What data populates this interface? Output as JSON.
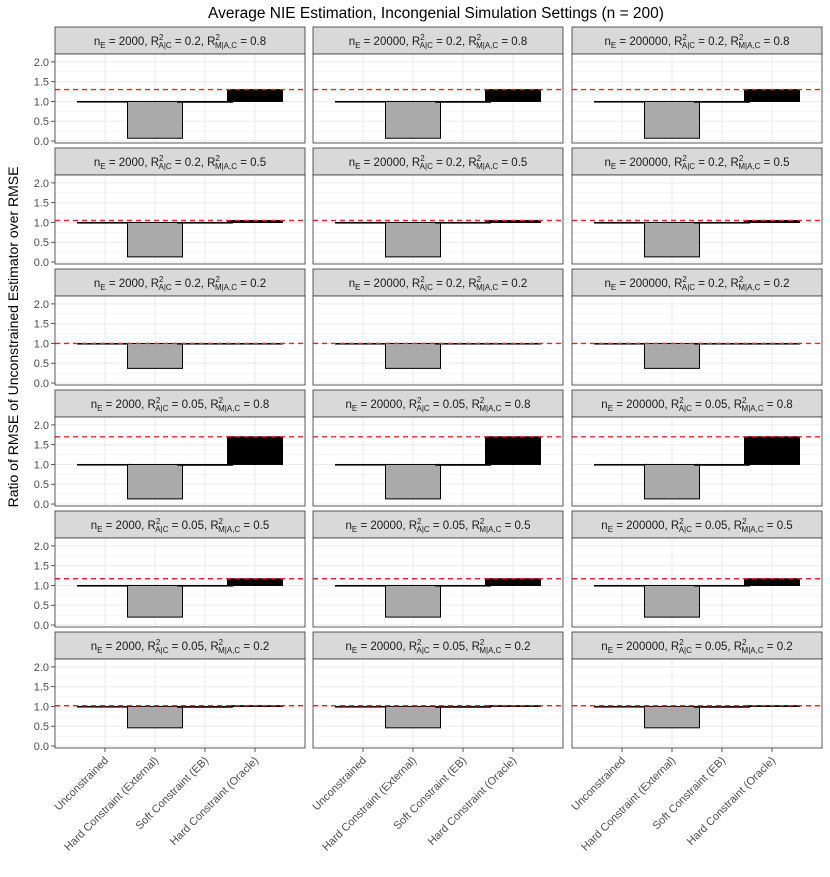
{
  "chart_data": {
    "type": "bar",
    "title": "Average NIE Estimation, Incongenial Simulation Settings (n = 200)",
    "ylabel": "Ratio of RMSE of Unconstrained Estimator over RMSE",
    "xlabel": "",
    "categories": [
      "Unconstrained",
      "Hard Constraint (External)",
      "Soft Constraint (EB)",
      "Hard Constraint (Oracle)"
    ],
    "ylim": [
      -0.05,
      2.2
    ],
    "yticks": [
      "0.0",
      "0.5",
      "1.0",
      "1.5",
      "2.0"
    ],
    "baseline": 1.0,
    "columns": [
      {
        "nE": "2000"
      },
      {
        "nE": "20000"
      },
      {
        "nE": "200000"
      }
    ],
    "rows": [
      {
        "rac": "0.2",
        "rmac": "0.8",
        "values": [
          1.0,
          0.07,
          0.98,
          1.3
        ],
        "dashed": 1.3
      },
      {
        "rac": "0.2",
        "rmac": "0.5",
        "values": [
          1.0,
          0.13,
          0.99,
          1.05
        ],
        "dashed": 1.05
      },
      {
        "rac": "0.2",
        "rmac": "0.2",
        "values": [
          1.0,
          0.37,
          1.0,
          1.0
        ],
        "dashed": 1.0
      },
      {
        "rac": "0.05",
        "rmac": "0.8",
        "values": [
          1.0,
          0.13,
          0.98,
          1.7
        ],
        "dashed": 1.7
      },
      {
        "rac": "0.05",
        "rmac": "0.5",
        "values": [
          1.0,
          0.2,
          0.99,
          1.17
        ],
        "dashed": 1.17
      },
      {
        "rac": "0.05",
        "rmac": "0.2",
        "values": [
          1.0,
          0.46,
          0.98,
          1.02
        ],
        "dashed": 1.02
      }
    ],
    "colors": {
      "unconstrained": "#ffffff",
      "external": "#aaaaaa",
      "soft": "#ffffff",
      "oracle": "#000000",
      "dashed": "#e8262a",
      "strip": "#d9d9d9",
      "grid": "#ebebeb"
    }
  }
}
